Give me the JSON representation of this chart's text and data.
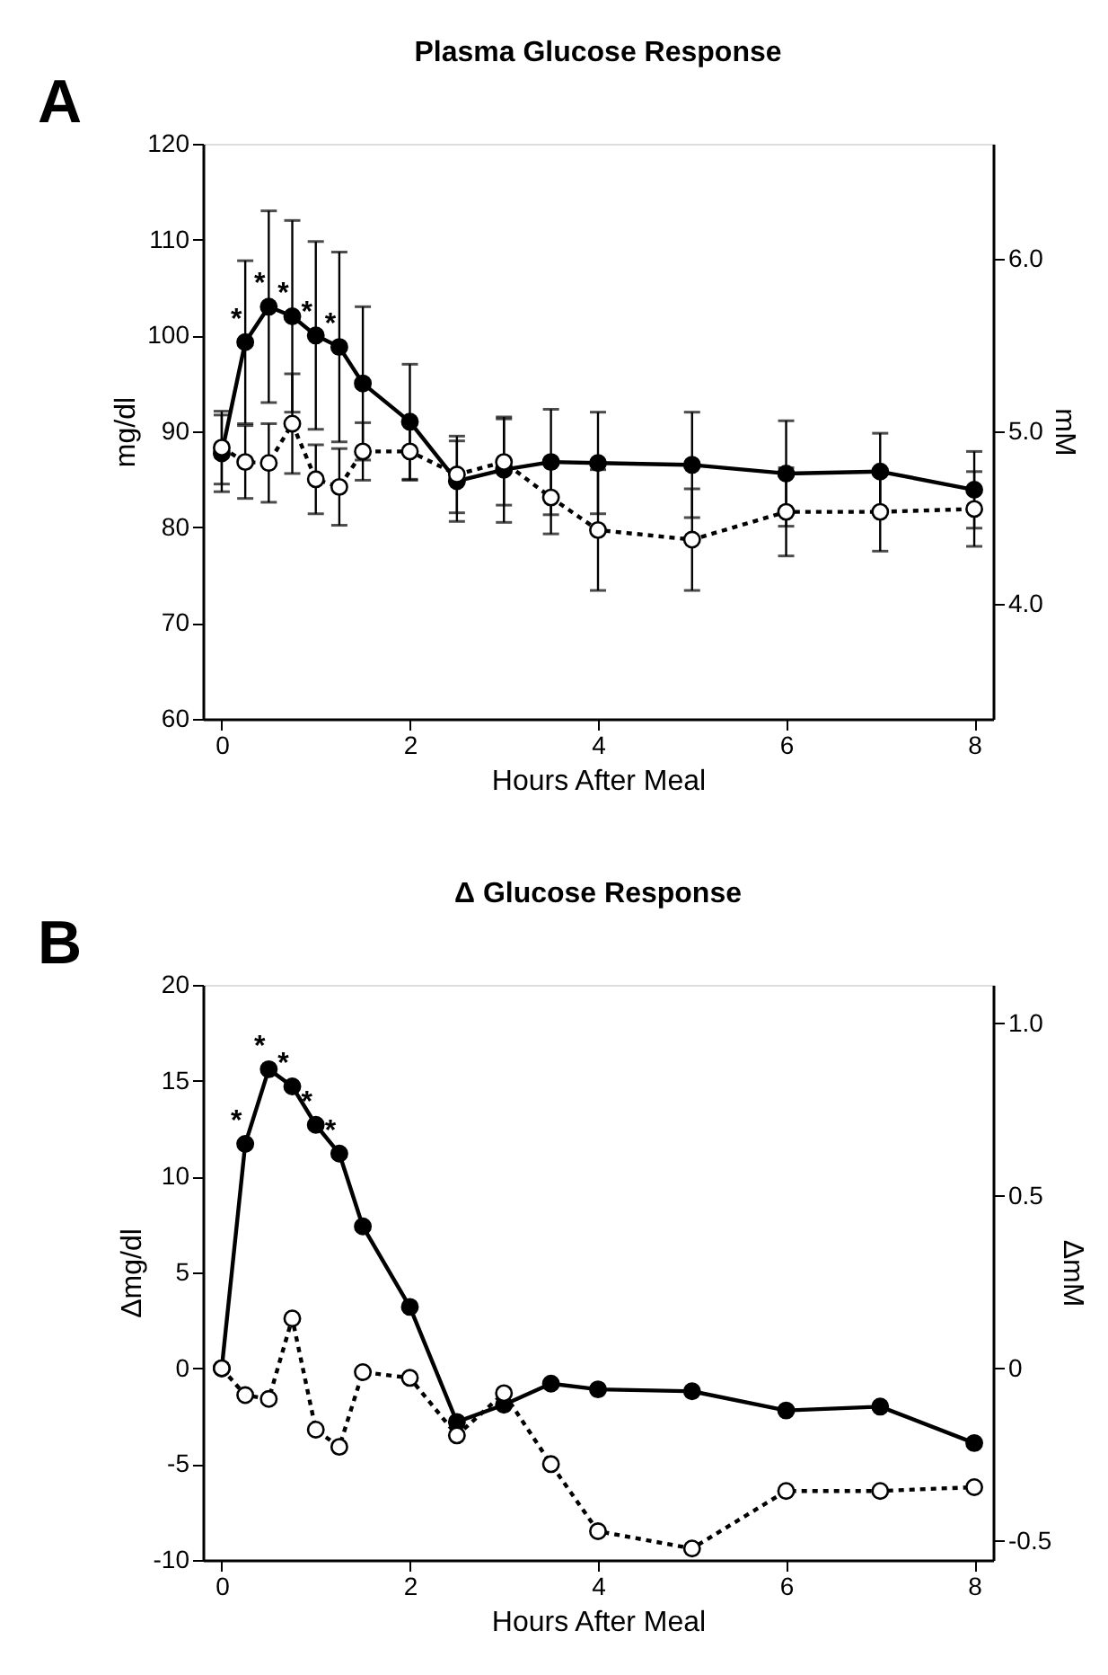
{
  "chart_data": [
    {
      "type": "line",
      "title": "Plasma Glucose Response",
      "xlabel": "Hours After Meal",
      "ylabel": "mg/dl",
      "y2label": "mM",
      "x": [
        0,
        0.25,
        0.5,
        0.75,
        1,
        1.25,
        1.5,
        2,
        2.5,
        3,
        3.5,
        4,
        5,
        6,
        7,
        8
      ],
      "series": [
        {
          "color": "#000000",
          "marker": "circle",
          "line_style": "solid",
          "values": [
            87.7,
            99.3,
            103,
            102,
            100,
            98.8,
            95,
            91,
            84.8,
            86,
            86.8,
            86.7,
            86.5,
            85.6,
            85.8,
            83.9
          ],
          "errors": [
            4,
            8.5,
            10,
            10,
            9.8,
            9.9,
            8,
            6,
            4.2,
            5.5,
            5.5,
            5.3,
            5.5,
            5.5,
            4,
            4
          ]
        },
        {
          "color": "#000000",
          "marker": "circle",
          "line_style": "dotted",
          "values": [
            88.3,
            86.8,
            86.7,
            90.8,
            85,
            84.2,
            87.9,
            87.9,
            85.5,
            86.8,
            83.1,
            79.7,
            78.7,
            81.6,
            81.6,
            81.9
          ],
          "errors": [
            3.8,
            3.8,
            4.1,
            5.2,
            3.6,
            4,
            3,
            3,
            4,
            4.5,
            3.8,
            6.3,
            5.3,
            4.6,
            4.1,
            3.9
          ]
        }
      ],
      "xlim": [
        -0.2,
        8.2
      ],
      "xticks": [
        0,
        2,
        4,
        6,
        8
      ],
      "ylim": [
        60,
        120
      ],
      "yticks": [
        60,
        70,
        80,
        90,
        100,
        110,
        120
      ],
      "y2lim": [
        3.333,
        6.667
      ],
      "y2ticks": [
        {
          "value": 4,
          "label": "4.0"
        },
        {
          "value": 5,
          "label": "5.0"
        },
        {
          "value": 6,
          "label": "6.0"
        }
      ],
      "annotations": [
        "A",
        {
          "text": "*",
          "x": 0.25,
          "y": 99.3
        },
        {
          "text": "*",
          "x": 0.5,
          "y": 103
        },
        {
          "text": "*",
          "x": 0.75,
          "y": 102
        },
        {
          "text": "*",
          "x": 1,
          "y": 100
        },
        {
          "text": "*",
          "x": 1.25,
          "y": 98.8
        }
      ],
      "grid": false
    },
    {
      "type": "line",
      "title": "Δ Glucose Response",
      "xlabel": "Hours After Meal",
      "ylabel": "Δmg/dl",
      "y2label": "ΔmM",
      "x": [
        0,
        0.25,
        0.5,
        0.75,
        1,
        1.25,
        1.5,
        2,
        2.5,
        3,
        3.5,
        4,
        5,
        6,
        7,
        8
      ],
      "series": [
        {
          "color": "#000000",
          "marker": "circle",
          "line_style": "solid",
          "values": [
            0,
            11.7,
            15.6,
            14.7,
            12.7,
            11.2,
            7.4,
            3.2,
            -2.8,
            -1.9,
            -0.8,
            -1.1,
            -1.2,
            -2.2,
            -2.0,
            -3.9
          ]
        },
        {
          "color": "#000000",
          "marker": "circle",
          "line_style": "dotted",
          "values": [
            0,
            -1.4,
            -1.6,
            2.6,
            -3.2,
            -4.1,
            -0.2,
            -0.5,
            -3.5,
            -1.3,
            -5.0,
            -8.5,
            -9.4,
            -6.4,
            -6.4,
            -6.2
          ]
        }
      ],
      "xlim": [
        -0.2,
        8.2
      ],
      "xticks": [
        0,
        2,
        4,
        6,
        8
      ],
      "ylim": [
        -10,
        20
      ],
      "yticks": [
        -10,
        -5,
        0,
        5,
        10,
        15,
        20
      ],
      "y2lim": [
        -0.556,
        1.111
      ],
      "y2ticks": [
        -0.5,
        0,
        0.5,
        {
          "value": 1,
          "label": "1.0"
        }
      ],
      "annotations": [
        "B",
        {
          "text": "*",
          "x": 0.25,
          "y": 11.7
        },
        {
          "text": "*",
          "x": 0.5,
          "y": 15.6
        },
        {
          "text": "*",
          "x": 0.75,
          "y": 14.7
        },
        {
          "text": "*",
          "x": 1,
          "y": 12.7
        },
        {
          "text": "*",
          "x": 1.25,
          "y": 11.2
        }
      ],
      "grid": false
    }
  ]
}
